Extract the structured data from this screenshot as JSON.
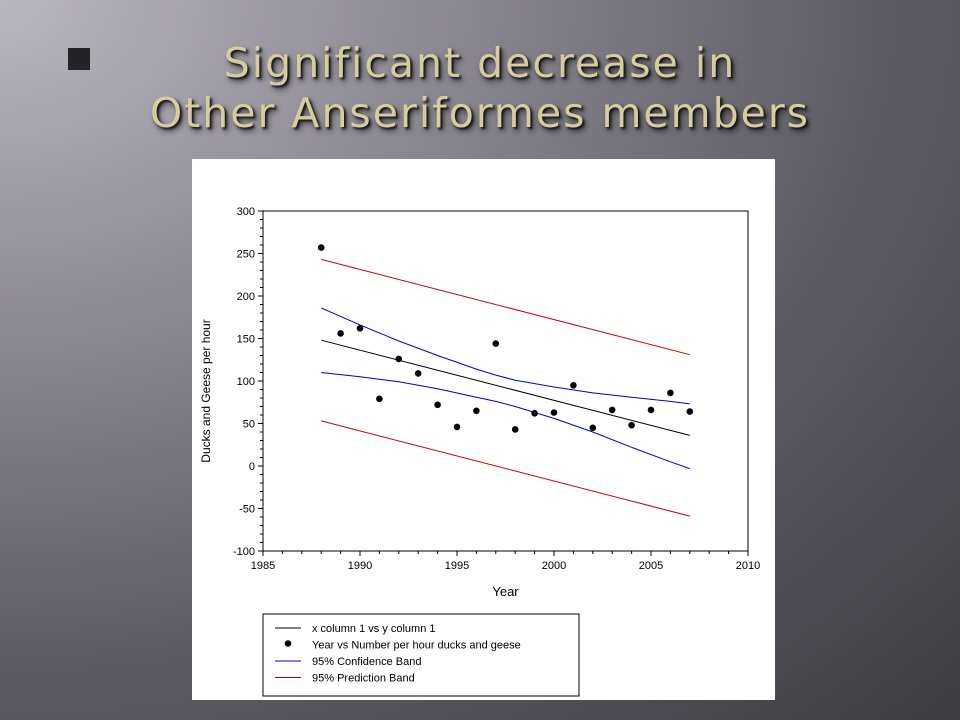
{
  "slide": {
    "title_line1": "Significant decrease in",
    "title_line2": "Other Anseriformes members"
  },
  "colors": {
    "title": "#d6cc9f",
    "regression": "#000000",
    "confidence": "#0000cc",
    "prediction": "#cc0000"
  },
  "chart_data": {
    "type": "scatter",
    "title": "",
    "xlabel": "Year",
    "ylabel": "Ducks and Geese per hour",
    "xlim": [
      1985,
      2010
    ],
    "ylim": [
      -100,
      300
    ],
    "x_ticks": [
      1985,
      1990,
      1995,
      2000,
      2005,
      2010
    ],
    "y_ticks": [
      -100,
      -50,
      0,
      50,
      100,
      150,
      200,
      250,
      300
    ],
    "grid": false,
    "legend_position": "bottom",
    "legend": [
      {
        "label": "x column 1 vs y column 1",
        "kind": "line",
        "color": "#000000"
      },
      {
        "label": "Year vs Number per hour ducks and geese",
        "kind": "marker",
        "color": "#000000"
      },
      {
        "label": "95% Confidence Band",
        "kind": "line",
        "color": "#0000cc"
      },
      {
        "label": "95% Prediction Band",
        "kind": "line",
        "color": "#cc0000"
      }
    ],
    "points": {
      "x": [
        1988,
        1989,
        1990,
        1991,
        1992,
        1993,
        1994,
        1995,
        1996,
        1997,
        1998,
        1999,
        2000,
        2001,
        2002,
        2003,
        2004,
        2005,
        2006,
        2007
      ],
      "y": [
        257,
        156,
        162,
        79,
        126,
        109,
        72,
        46,
        65,
        144,
        43,
        62,
        63,
        95,
        45,
        66,
        48,
        66,
        86,
        64
      ]
    },
    "regression": {
      "x": [
        1988,
        2007
      ],
      "y": [
        148,
        36
      ]
    },
    "confidence_upper": {
      "x": [
        1988,
        1990,
        1992,
        1994,
        1996,
        1997,
        1998,
        2000,
        2002,
        2004,
        2006,
        2007
      ],
      "y": [
        186,
        166,
        147,
        130,
        114,
        107,
        101,
        93,
        86,
        81,
        76,
        73
      ]
    },
    "confidence_lower": {
      "x": [
        1988,
        1990,
        1992,
        1994,
        1996,
        1997,
        1998,
        2000,
        2002,
        2004,
        2006,
        2007
      ],
      "y": [
        110,
        105,
        99,
        91,
        81,
        76,
        70,
        56,
        40,
        22,
        5,
        -3
      ]
    },
    "prediction_upper": {
      "x": [
        1988,
        2007
      ],
      "y": [
        243,
        131
      ]
    },
    "prediction_lower": {
      "x": [
        1988,
        2007
      ],
      "y": [
        53,
        -59
      ]
    }
  }
}
